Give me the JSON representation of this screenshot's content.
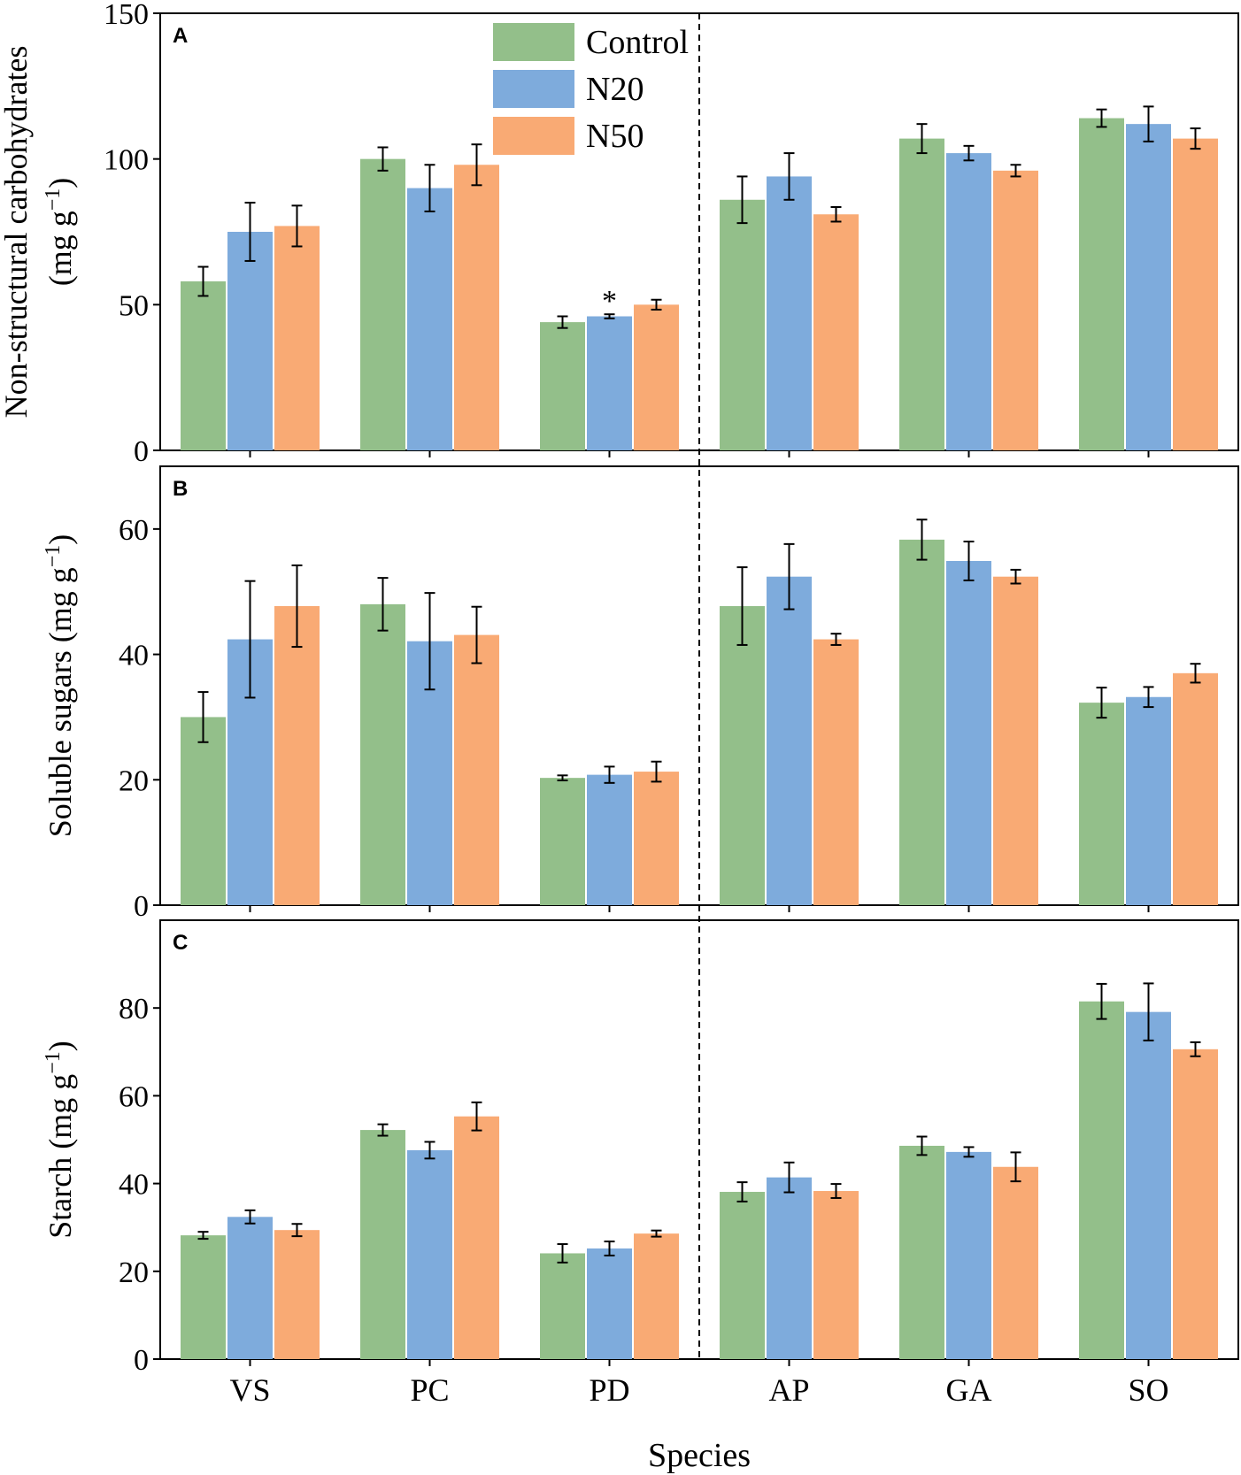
{
  "chart_data": [
    {
      "panel": "A",
      "type": "bar",
      "ylabel_line1": "Non-structural carbohydrates",
      "ylabel_line2": "(mg g",
      "ylabel_sup": "−1",
      "ylabel_close": ")",
      "ylim": [
        0,
        150
      ],
      "yticks": [
        0,
        50,
        100,
        150
      ],
      "categories": [
        "VS",
        "PC",
        "PD",
        "AP",
        "GA",
        "SO"
      ],
      "series": [
        {
          "name": "Control",
          "values": [
            58,
            100,
            44,
            86,
            107,
            114
          ],
          "errors": [
            5,
            4,
            2,
            8,
            5,
            3
          ]
        },
        {
          "name": "N20",
          "values": [
            75,
            90,
            46,
            94,
            102,
            112
          ],
          "errors": [
            10,
            8,
            0.7,
            8,
            2.5,
            6
          ]
        },
        {
          "name": "N50",
          "values": [
            77,
            98,
            50,
            81,
            96,
            107
          ],
          "errors": [
            7,
            7,
            1.7,
            2.5,
            2,
            3.5
          ]
        }
      ],
      "annotations": [
        {
          "text": "*",
          "category": "PD",
          "series": "N20"
        }
      ]
    },
    {
      "panel": "B",
      "type": "bar",
      "ylabel_line1": "Soluble sugars (mg g",
      "ylabel_sup": "−1",
      "ylabel_close": ")",
      "ylim": [
        0,
        70
      ],
      "yticks": [
        0,
        20,
        40,
        60
      ],
      "categories": [
        "VS",
        "PC",
        "PD",
        "AP",
        "GA",
        "SO"
      ],
      "series": [
        {
          "name": "Control",
          "values": [
            30,
            48,
            20.3,
            47.7,
            58.3,
            32.3
          ],
          "errors": [
            4,
            4.2,
            0.4,
            6.2,
            3.2,
            2.4
          ]
        },
        {
          "name": "N20",
          "values": [
            42.4,
            42.1,
            20.8,
            52.4,
            54.9,
            33.2
          ],
          "errors": [
            9.3,
            7.7,
            1.3,
            5.2,
            3.1,
            1.6
          ]
        },
        {
          "name": "N50",
          "values": [
            47.7,
            43.1,
            21.3,
            42.4,
            52.4,
            37
          ],
          "errors": [
            6.5,
            4.5,
            1.6,
            0.9,
            1.1,
            1.5
          ]
        }
      ]
    },
    {
      "panel": "C",
      "type": "bar",
      "ylabel_line1": "Starch (mg g",
      "ylabel_sup": "−1",
      "ylabel_close": ")",
      "ylim": [
        0,
        100
      ],
      "yticks": [
        0,
        20,
        40,
        60,
        80
      ],
      "categories": [
        "VS",
        "PC",
        "PD",
        "AP",
        "GA",
        "SO"
      ],
      "series": [
        {
          "name": "Control",
          "values": [
            28.2,
            52.2,
            24.1,
            38.1,
            48.6,
            81.5
          ],
          "errors": [
            0.8,
            1.3,
            2.1,
            2.2,
            2.1,
            4
          ]
        },
        {
          "name": "N20",
          "values": [
            32.4,
            47.6,
            25.2,
            41.4,
            47.2,
            79.1
          ],
          "errors": [
            1.5,
            1.9,
            1.6,
            3.4,
            1.1,
            6.5
          ]
        },
        {
          "name": "N50",
          "values": [
            29.4,
            55.3,
            28.6,
            38.3,
            43.8,
            70.6
          ],
          "errors": [
            1.4,
            3.2,
            0.7,
            1.6,
            3.3,
            1.6
          ]
        }
      ]
    }
  ],
  "legend": {
    "entries": [
      "Control",
      "N20",
      "N50"
    ],
    "placement": "top, inside panel A"
  },
  "xlabel": "Species",
  "colors": {
    "Control": "#93bf8a",
    "N20": "#7eabdc",
    "N50": "#f9aa74",
    "axis": "#000000"
  }
}
